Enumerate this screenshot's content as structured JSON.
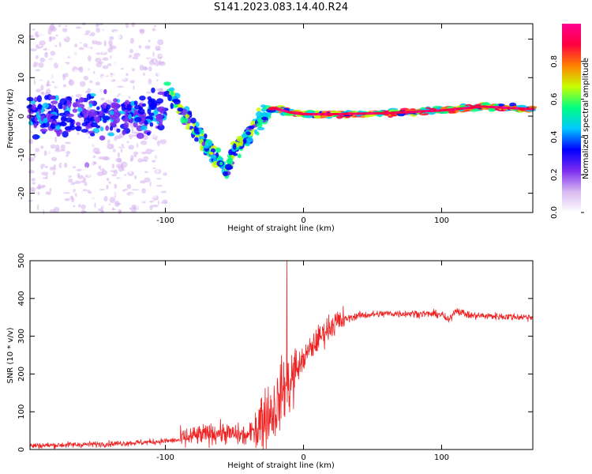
{
  "figure_title": "S141.2023.083.14.40.R24",
  "chart_data": [
    {
      "type": "heatmap",
      "xlabel": "Height of straight line (km)",
      "ylabel": "Frequency (Hz)",
      "xlim": [
        -198,
        166
      ],
      "ylim": [
        -25,
        24
      ],
      "xticks": [
        -100,
        0,
        100
      ],
      "yticks": [
        -20,
        -10,
        0,
        10,
        20
      ],
      "colorbar": {
        "label": "Normalized spectral amplitude",
        "range": [
          0,
          1
        ],
        "ticks": [
          0.0,
          0.2,
          0.4,
          0.6,
          0.8
        ],
        "colormap": [
          "#ffffff",
          "#d8b8f0",
          "#7b2cf0",
          "#0000ff",
          "#00c8ff",
          "#00ff80",
          "#c8ff00",
          "#ff8000",
          "#ff0040",
          "#ff0090"
        ]
      },
      "ridge": {
        "description_points_x": [
          -100,
          -95,
          -85,
          -75,
          -65,
          -55,
          -50,
          -45,
          -40,
          -30,
          -20,
          -10,
          0,
          20,
          60,
          100,
          130,
          166
        ],
        "description_points_y": [
          7,
          5,
          0,
          -5,
          -10,
          -14,
          -8,
          -7,
          -5,
          0,
          2,
          1,
          0.5,
          0.5,
          0.8,
          1.5,
          2.5,
          1.8
        ]
      }
    },
    {
      "type": "line",
      "xlabel": "Height of straight line (km)",
      "ylabel": "SNR (10 * v/v)",
      "xlim": [
        -198,
        166
      ],
      "ylim": [
        0,
        500
      ],
      "xticks": [
        -100,
        0,
        100
      ],
      "yticks": [
        0,
        100,
        200,
        300,
        400,
        500
      ],
      "color": "#ee2222",
      "trend": {
        "x": [
          -198,
          -140,
          -110,
          -90,
          -80,
          -70,
          -60,
          -50,
          -40,
          -30,
          -20,
          -15,
          -10,
          -5,
          0,
          10,
          20,
          30,
          40,
          60,
          80,
          100,
          105,
          110,
          120,
          166
        ],
        "y": [
          10,
          15,
          20,
          25,
          35,
          40,
          45,
          40,
          35,
          80,
          110,
          160,
          175,
          210,
          240,
          290,
          330,
          345,
          355,
          360,
          360,
          358,
          340,
          370,
          355,
          350
        ]
      }
    }
  ]
}
